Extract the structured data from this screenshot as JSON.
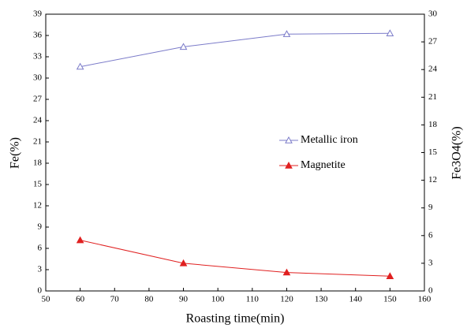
{
  "chart_data": {
    "type": "line",
    "x_label": "Roasting time(min)",
    "y_label": "Fe(%)",
    "y2_label": "Fe3O4(%)",
    "x": [
      60,
      90,
      120,
      150
    ],
    "series": [
      {
        "name": "Metallic iron",
        "color": "#7b7bc9",
        "marker": "open-triangle",
        "axis": "y",
        "values": [
          31.6,
          34.4,
          36.2,
          36.3
        ]
      },
      {
        "name": "Magnetite",
        "color": "#e02020",
        "marker": "filled-triangle",
        "axis": "y2",
        "values": [
          5.5,
          3.0,
          2.0,
          1.6
        ]
      }
    ],
    "xlim": [
      50,
      160
    ],
    "xticks": [
      50,
      60,
      70,
      80,
      90,
      100,
      110,
      120,
      130,
      140,
      150,
      160
    ],
    "ylim": [
      0,
      39
    ],
    "yticks": [
      0,
      3,
      6,
      9,
      12,
      15,
      18,
      21,
      24,
      27,
      30,
      33,
      36,
      39
    ],
    "y2lim": [
      0,
      30
    ],
    "y2ticks": [
      0,
      3,
      6,
      9,
      12,
      15,
      18,
      21,
      24,
      27,
      30
    ],
    "legend": "center-right",
    "grid": false
  }
}
